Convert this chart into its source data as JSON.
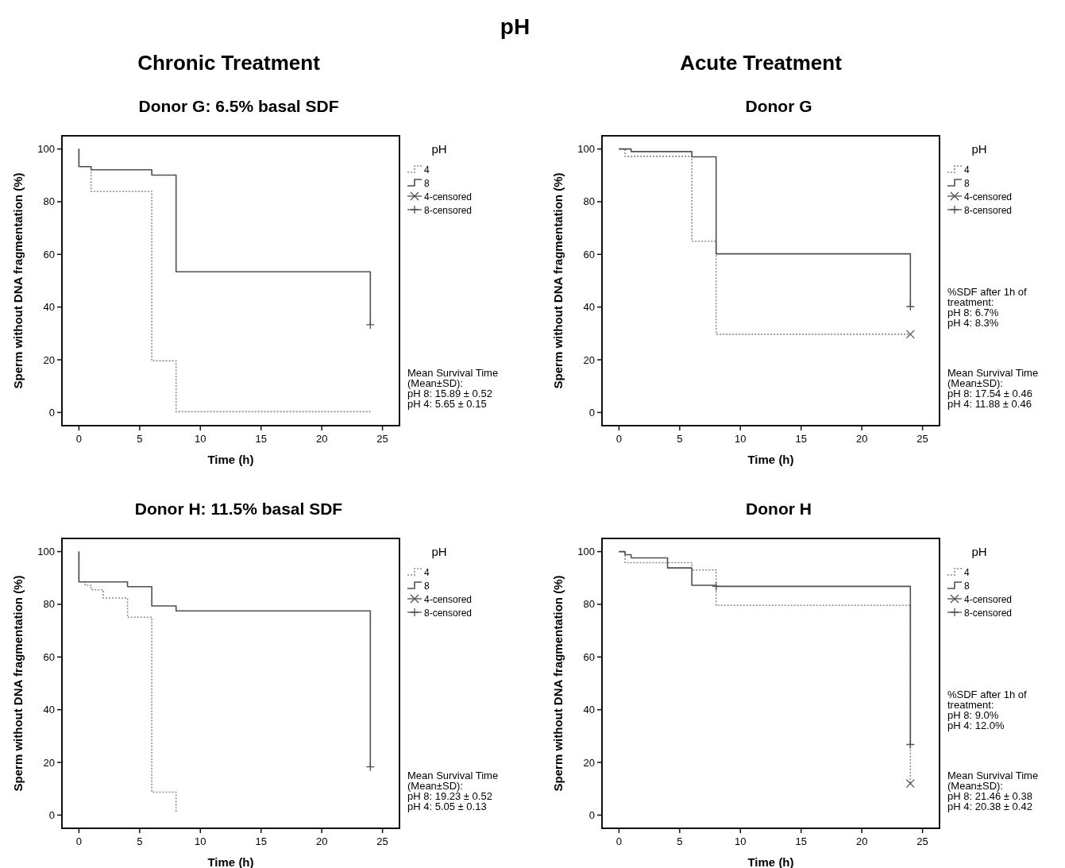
{
  "chart_data": [
    {
      "type": "other",
      "title": "pH",
      "annotations": [
        "Chronic Treatment",
        "Acute Treatment"
      ]
    },
    {
      "type": "step",
      "title": "Donor G: 6.5% basal SDF",
      "xlabel": "Time (h)",
      "ylabel": "Sperm without DNA fragmentation (%)",
      "legend_title": "pH",
      "legend": "right",
      "grid": false,
      "xlim": [
        -1.4,
        26.4
      ],
      "ylim": [
        -5,
        105
      ],
      "xticks": [
        0,
        5,
        10,
        15,
        20,
        25
      ],
      "yticks": [
        0,
        20,
        40,
        60,
        80,
        100
      ],
      "annotations": [
        "Mean Survival Time\n(Mean±SD):\npH 8: 15.89 ± 0.52\npH 4: 5.65 ± 0.15"
      ],
      "series": [
        {
          "name": "4",
          "type": "step",
          "color": "#8a8a8a",
          "line_style": "dotted",
          "x": [
            0,
            0,
            1,
            6,
            8,
            24
          ],
          "values": [
            100,
            93.3,
            83.9,
            19.6,
            0.3,
            0.3
          ]
        },
        {
          "name": "8",
          "type": "step",
          "color": "#505050",
          "line_style": "solid",
          "x": [
            0,
            0,
            1,
            6,
            8,
            24,
            24
          ],
          "values": [
            100,
            93.3,
            92.1,
            90.1,
            53.4,
            53.4,
            33.3
          ]
        },
        {
          "name": "4-censored",
          "type": "scatter",
          "marker": "x",
          "color": "#505050"
        },
        {
          "name": "8-censored",
          "type": "scatter",
          "marker": "cross",
          "color": "#505050",
          "x": [
            24
          ],
          "values": [
            33.3
          ]
        }
      ]
    },
    {
      "type": "step",
      "title": "Donor G",
      "xlabel": "Time (h)",
      "ylabel": "Sperm without DNA fragmentation (%)",
      "legend_title": "pH",
      "legend": "right",
      "grid": false,
      "xlim": [
        -1.4,
        26.4
      ],
      "ylim": [
        -5,
        105
      ],
      "xticks": [
        0,
        5,
        10,
        15,
        20,
        25
      ],
      "yticks": [
        0,
        20,
        40,
        60,
        80,
        100
      ],
      "annotations": [
        "%SDF after 1h of\ntreatment:\npH 8: 6.7%\npH 4: 8.3%",
        "Mean Survival Time\n(Mean±SD):\npH 8: 17.54  ± 0.46\npH 4: 11.88 ± 0.46"
      ],
      "series": [
        {
          "name": "4",
          "type": "step",
          "color": "#8a8a8a",
          "line_style": "dotted",
          "x": [
            0,
            0.5,
            6,
            8,
            24
          ],
          "values": [
            100,
            97.2,
            65,
            29.7,
            29.7
          ]
        },
        {
          "name": "8",
          "type": "step",
          "color": "#505050",
          "line_style": "solid",
          "x": [
            0,
            1,
            6,
            8,
            24,
            24
          ],
          "values": [
            100,
            99,
            97,
            60.2,
            60.2,
            40.2
          ]
        },
        {
          "name": "4-censored",
          "type": "scatter",
          "marker": "x",
          "color": "#505050",
          "x": [
            24
          ],
          "values": [
            29.7
          ]
        },
        {
          "name": "8-censored",
          "type": "scatter",
          "marker": "cross",
          "color": "#505050",
          "x": [
            24
          ],
          "values": [
            40.2
          ]
        }
      ]
    },
    {
      "type": "step",
      "title": "Donor H: 11.5% basal SDF",
      "xlabel": "Time (h)",
      "ylabel": "Sperm without DNA fragmentation (%)",
      "legend_title": "pH",
      "legend": "right",
      "grid": false,
      "xlim": [
        -1.4,
        26.4
      ],
      "ylim": [
        -5,
        105
      ],
      "xticks": [
        0,
        5,
        10,
        15,
        20,
        25
      ],
      "yticks": [
        0,
        20,
        40,
        60,
        80,
        100
      ],
      "annotations": [
        "Mean Survival Time\n(Mean±SD):\npH 8: 19.23 ± 0.52\npH 4: 5.05 ± 0.13"
      ],
      "series": [
        {
          "name": "4",
          "type": "step",
          "color": "#8a8a8a",
          "line_style": "dotted",
          "x": [
            0,
            0,
            0.5,
            1,
            2,
            4,
            6,
            8
          ],
          "values": [
            100,
            88.5,
            87.2,
            85.5,
            82.4,
            75.1,
            8.7,
            1
          ]
        },
        {
          "name": "8",
          "type": "step",
          "color": "#505050",
          "line_style": "solid",
          "x": [
            0,
            0,
            4,
            6,
            8,
            24,
            24
          ],
          "values": [
            100,
            88.5,
            86.7,
            79.4,
            77.5,
            77.5,
            18.3
          ]
        },
        {
          "name": "4-censored",
          "type": "scatter",
          "marker": "x",
          "color": "#505050"
        },
        {
          "name": "8-censored",
          "type": "scatter",
          "marker": "cross",
          "color": "#505050",
          "x": [
            24
          ],
          "values": [
            18.3
          ]
        }
      ]
    },
    {
      "type": "step",
      "title": "Donor H",
      "xlabel": "Time (h)",
      "ylabel": "Sperm without DNA fragmentation (%)",
      "legend_title": "pH",
      "legend": "right",
      "grid": false,
      "xlim": [
        -1.4,
        26.4
      ],
      "ylim": [
        -5,
        105
      ],
      "xticks": [
        0,
        5,
        10,
        15,
        20,
        25
      ],
      "yticks": [
        0,
        20,
        40,
        60,
        80,
        100
      ],
      "annotations": [
        "%SDF after 1h of\ntreatment:\npH 8: 9.0%\npH 4: 12.0%",
        "Mean Survival Time\n(Mean±SD):\npH 8: 21.46 ± 0.38\npH 4: 20.38 ± 0.42"
      ],
      "series": [
        {
          "name": "4",
          "type": "step",
          "color": "#8a8a8a",
          "line_style": "dotted",
          "x": [
            0,
            0.5,
            6,
            8,
            24,
            24
          ],
          "values": [
            100,
            95.8,
            93,
            79.6,
            79.6,
            12
          ]
        },
        {
          "name": "8",
          "type": "step",
          "color": "#505050",
          "line_style": "solid",
          "x": [
            0,
            0.5,
            1,
            4,
            6,
            8,
            24,
            24
          ],
          "values": [
            100,
            98.8,
            97.6,
            93.8,
            87.2,
            86.8,
            86.8,
            26.8
          ]
        },
        {
          "name": "4-censored",
          "type": "scatter",
          "marker": "x",
          "color": "#505050",
          "x": [
            24
          ],
          "values": [
            12
          ]
        },
        {
          "name": "8-censored",
          "type": "scatter",
          "marker": "cross",
          "color": "#505050",
          "x": [
            24,
            8
          ],
          "values": [
            26.8,
            86.8
          ]
        }
      ]
    }
  ]
}
